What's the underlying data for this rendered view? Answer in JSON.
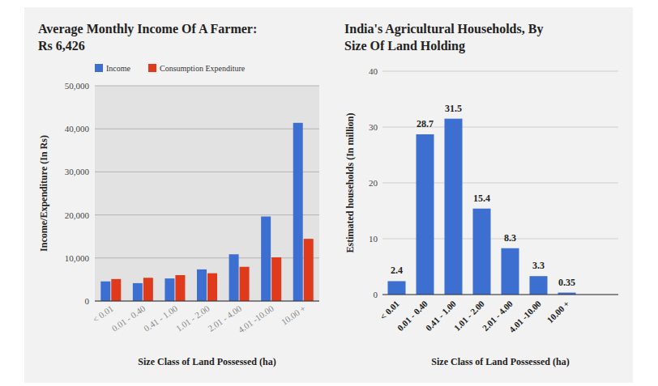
{
  "chart_data": [
    {
      "type": "bar",
      "title": "Average Monthly Income Of A Farmer: Rs 6,426",
      "x_label": "Size Class of Land Possessed (ha)",
      "y_label": "Income/Expenditure (In Rs)",
      "categories": [
        "< 0.01",
        "0.01 - 0.40",
        "0.41 - 1.00",
        "1.01 - 2.00",
        "2.01 - 4.00",
        "4.01 -10.00",
        "10.00 +"
      ],
      "series": [
        {
          "name": "Income",
          "color": "#3d6fd1",
          "values": [
            4561,
            4152,
            5247,
            7348,
            10857,
            19637,
            41388
          ]
        },
        {
          "name": "Consumption Expenditure",
          "color": "#df3a1c",
          "values": [
            5108,
            5401,
            6020,
            6457,
            7948,
            10152,
            14447
          ]
        }
      ],
      "ylim": [
        0,
        50000
      ],
      "yticks": [
        0,
        {
          "value": 10000,
          "label": "10,000"
        },
        {
          "value": 20000,
          "label": "20,000"
        },
        {
          "value": 30000,
          "label": "30,000"
        },
        {
          "value": 40000,
          "label": "40,000"
        },
        {
          "value": 50000,
          "label": "50,000"
        }
      ],
      "grid": true,
      "legend": "top"
    },
    {
      "type": "bar",
      "title": "India's Agricultural Households, By Size Of Land Holding",
      "x_label": "Size Class of Land Possessed (ha)",
      "y_label": "Estimated households (In million)",
      "categories": [
        "< 0.01",
        "0.01 - 0.40",
        "0.41 - 1.00",
        "1.01 - 2.00",
        "2.01 - 4.00",
        "4.01 -10.00",
        "10.00 +"
      ],
      "values": [
        2.4,
        28.7,
        31.5,
        15.4,
        8.3,
        3.3,
        0.35
      ],
      "color": "#3d6fd1",
      "ylim": [
        0,
        40
      ],
      "yticks": [
        0,
        10,
        20,
        30,
        40
      ],
      "grid": true,
      "data_labels": true
    }
  ]
}
